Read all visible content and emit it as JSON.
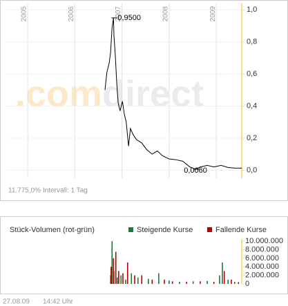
{
  "chart_data": [
    {
      "type": "line",
      "series": [
        {
          "color": "#000000",
          "x": [
            2006.64,
            2006.68,
            2006.73,
            2006.76,
            2006.79,
            2006.82,
            2006.83,
            2006.86,
            2006.89,
            2006.92,
            2006.96,
            2007.01,
            2007.05,
            2007.09,
            2007.14,
            2007.18,
            2007.24,
            2007.31,
            2007.42,
            2007.52,
            2007.64,
            2007.75,
            2007.86,
            2008.0,
            2008.15,
            2008.29,
            2008.44,
            2008.56,
            2008.66,
            2008.81,
            2008.95,
            2009.1,
            2009.25,
            2009.39,
            2009.54
          ],
          "values": [
            0.5,
            0.61,
            0.67,
            0.74,
            0.89,
            0.95,
            0.84,
            0.71,
            0.54,
            0.42,
            0.37,
            0.43,
            0.35,
            0.3,
            0.15,
            0.26,
            0.22,
            0.19,
            0.17,
            0.13,
            0.1,
            0.12,
            0.09,
            0.07,
            0.065,
            0.056,
            0.02,
            0.006,
            0.02,
            0.03,
            0.02,
            0.03,
            0.017,
            0.013,
            0.013
          ]
        }
      ],
      "annotations": [
        {
          "x": 2006.82,
          "value": 0.95,
          "label": "0,9500"
        },
        {
          "x": 2008.56,
          "value": 0.006,
          "label": "0,0060"
        }
      ],
      "xlim": [
        2004.56,
        2009.54
      ],
      "xticks": [
        2005,
        2006,
        2007,
        2008,
        2009
      ],
      "ylim": [
        -0.05,
        1.04
      ],
      "yticks": [
        {
          "value": 0,
          "label": "0,0"
        },
        {
          "value": 0.2,
          "label": "0,2"
        },
        {
          "value": 0.4,
          "label": "0,4"
        },
        {
          "value": 0.6,
          "label": "0,6"
        },
        {
          "value": 0.8,
          "label": "0,8"
        },
        {
          "value": 1.0,
          "label": "1,0"
        }
      ],
      "grid": true
    },
    {
      "type": "bar",
      "title": "Stück-Volumen (rot-grün)",
      "series": [
        {
          "name": "Steigende Kurse",
          "color": "#1a7a3a",
          "x": [
            2006.76,
            2006.79,
            2006.83,
            2006.9,
            2006.98,
            2007.08,
            2007.2,
            2007.34,
            2007.56,
            2007.78,
            2008.0,
            2008.22,
            2008.51,
            2008.81,
            2009.07,
            2009.13,
            2009.25,
            2009.39
          ],
          "values": [
            2000000,
            10000000,
            3000000,
            1500000,
            2000000,
            1000000,
            2500000,
            1500000,
            1200000,
            2500000,
            800000,
            500000,
            600000,
            700000,
            2000000,
            5000000,
            1000000,
            500000
          ]
        },
        {
          "name": "Fallende Kurse",
          "color": "#b30000",
          "x": [
            2006.77,
            2006.82,
            2006.87,
            2006.93,
            2007.02,
            2007.12,
            2007.27,
            2007.42,
            2007.64,
            2007.9,
            2008.07,
            2008.37,
            2008.66,
            2008.95,
            2009.17,
            2009.32,
            2009.47
          ],
          "values": [
            4000000,
            6000000,
            7500000,
            3000000,
            2500000,
            5000000,
            2000000,
            2000000,
            1000000,
            1000000,
            600000,
            500000,
            600000,
            500000,
            3000000,
            1000000,
            400000
          ]
        }
      ],
      "xlim": [
        2004.56,
        2009.54
      ],
      "ylim": [
        0,
        10500000
      ],
      "yticks": [
        0,
        {
          "value": 2000000,
          "label": "2.000.000"
        },
        {
          "value": 4000000,
          "label": "4.000.000"
        },
        {
          "value": 6000000,
          "label": "6.000.000"
        },
        {
          "value": 8000000,
          "label": "8.000.000"
        },
        {
          "value": 10000000,
          "label": "10.000.000"
        }
      ]
    }
  ],
  "watermark": [
    ".com",
    "direct"
  ],
  "performance": "11.775,0%",
  "interval": "Intervall: 1 Tag",
  "footer": {
    "date": "27.08.09",
    "time": "14:42 Uhr"
  }
}
